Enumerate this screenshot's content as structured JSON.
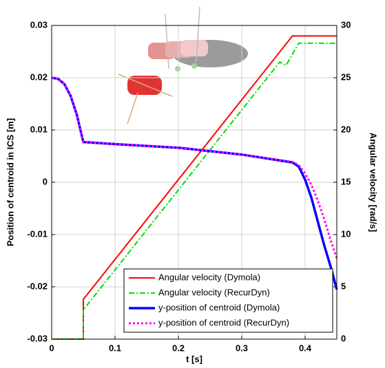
{
  "chart_data": {
    "type": "line",
    "xlabel": "t [s]",
    "ylabel": "Position of centroid in ICS [m]",
    "y2label": "Angular velocity [rad/s]",
    "xlim": [
      0,
      0.45
    ],
    "xticks": [
      0,
      0.1,
      0.2,
      0.3,
      0.4
    ],
    "ylim": [
      -0.03,
      0.03
    ],
    "yticks": [
      -0.03,
      -0.02,
      -0.01,
      0,
      0.01,
      0.02,
      0.03
    ],
    "y2lim": [
      0,
      30
    ],
    "y2ticks": [
      0,
      5,
      10,
      15,
      20,
      25,
      30
    ],
    "grid": true,
    "legend": "lower right",
    "series": [
      {
        "name": "Angular velocity (Dymola)",
        "color": "#ff0000",
        "style": "solid",
        "linewidth": 2,
        "axis": "y2",
        "x": [
          0,
          0.05,
          0.05,
          0.38,
          0.45
        ],
        "values": [
          0,
          0,
          3.8,
          29,
          29
        ]
      },
      {
        "name": "Angular velocity (RecurDyn)",
        "color": "#00dd00",
        "style": "dashdot",
        "linewidth": 2,
        "axis": "y2",
        "x": [
          0,
          0.05,
          0.05,
          0.36,
          0.37,
          0.39,
          0.45
        ],
        "values": [
          0,
          0,
          2.8,
          26.5,
          26.2,
          28.3,
          28.3
        ]
      },
      {
        "name": "y-position of centroid (Dymola)",
        "color": "#0000ff",
        "style": "solid",
        "linewidth": 3.5,
        "x": [
          0,
          0.01,
          0.02,
          0.03,
          0.04,
          0.045,
          0.05,
          0.1,
          0.2,
          0.3,
          0.38,
          0.39,
          0.4,
          0.41,
          0.42,
          0.43,
          0.44,
          0.45
        ],
        "values": [
          0.02,
          0.0198,
          0.0188,
          0.0165,
          0.0128,
          0.0102,
          0.0077,
          0.0073,
          0.0066,
          0.0053,
          0.0038,
          0.003,
          0.0005,
          -0.003,
          -0.0075,
          -0.012,
          -0.016,
          -0.0205
        ]
      },
      {
        "name": "y-position of centroid (RecurDyn)",
        "color": "#ff00ff",
        "style": "dotted",
        "linewidth": 3,
        "x": [
          0,
          0.01,
          0.02,
          0.03,
          0.04,
          0.045,
          0.05,
          0.1,
          0.2,
          0.3,
          0.38,
          0.39,
          0.4,
          0.41,
          0.42,
          0.43,
          0.44,
          0.45
        ],
        "values": [
          0.02,
          0.0198,
          0.0188,
          0.0165,
          0.0128,
          0.0102,
          0.0077,
          0.0073,
          0.0066,
          0.0053,
          0.0039,
          0.0033,
          0.0017,
          -0.0005,
          -0.0035,
          -0.007,
          -0.011,
          -0.0145
        ]
      }
    ]
  }
}
